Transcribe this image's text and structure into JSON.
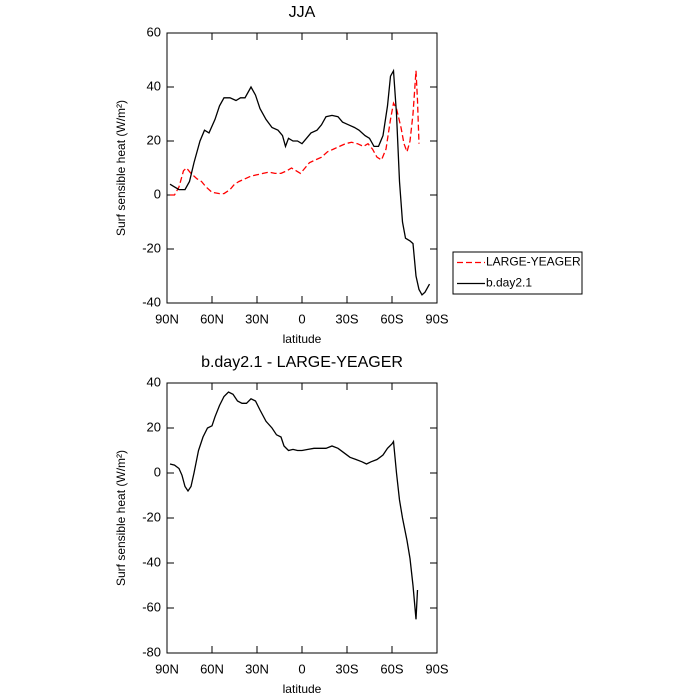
{
  "chart_data": [
    {
      "type": "line",
      "title": "JJA",
      "xlabel": "latitude",
      "ylabel": "Surf sensible heat (W/m²)",
      "xlim": [
        90,
        -90
      ],
      "xticks": [
        {
          "value": 90,
          "label": "90N"
        },
        {
          "value": 60,
          "label": "60N"
        },
        {
          "value": 30,
          "label": "30N"
        },
        0,
        {
          "value": -30,
          "label": "30S"
        },
        {
          "value": -60,
          "label": "60S"
        },
        {
          "value": -90,
          "label": "90S"
        }
      ],
      "ylim": [
        -40,
        60
      ],
      "yticks": [
        -40,
        -20,
        0,
        20,
        40,
        60
      ],
      "legend": "outside-lower-right",
      "series": [
        {
          "name": "LARGE-YEAGER",
          "color": "#ff0000",
          "line_style": "dashed",
          "x": [
            88,
            85,
            82,
            79,
            77,
            74,
            70,
            67,
            64,
            60,
            55,
            52,
            48,
            45,
            42,
            38,
            34,
            30,
            26,
            22,
            18,
            14,
            10,
            7,
            4,
            1,
            -2,
            -5,
            -9,
            -13,
            -17,
            -21,
            -25,
            -29,
            -33,
            -37,
            -41,
            -44,
            -47,
            -50,
            -53,
            -56,
            -59,
            -61,
            -63,
            -66,
            -68,
            -70,
            -72,
            -74,
            -76,
            -77,
            -78
          ],
          "values": [
            0,
            0,
            3,
            9,
            10,
            8,
            6,
            5,
            3,
            1,
            0.5,
            0.5,
            2,
            4,
            5,
            6,
            7,
            7.5,
            8,
            8.5,
            8,
            8,
            9,
            10,
            9,
            8,
            10,
            12,
            13,
            14,
            16,
            17,
            18,
            19,
            19.5,
            19,
            18,
            19,
            17,
            14,
            13,
            17,
            28,
            34,
            32,
            25,
            19,
            16,
            20,
            30,
            46,
            35,
            19
          ]
        },
        {
          "name": "b.day2.1",
          "color": "#000000",
          "line_style": "solid",
          "x": [
            88,
            85,
            82,
            78,
            75,
            72,
            68,
            65,
            62,
            58,
            55,
            52,
            48,
            44,
            41,
            38,
            34,
            31,
            28,
            24,
            20,
            16,
            13,
            11,
            9,
            6,
            3,
            0,
            -3,
            -6,
            -10,
            -13,
            -16,
            -20,
            -24,
            -27,
            -31,
            -35,
            -38,
            -42,
            -45,
            -48,
            -51,
            -54,
            -57,
            -59,
            -61,
            -63,
            -65,
            -67,
            -69,
            -72,
            -74,
            -76,
            -78,
            -80,
            -82,
            -85
          ],
          "values": [
            4,
            3,
            2,
            2,
            5,
            12,
            20,
            24,
            23,
            28,
            33,
            36,
            36,
            35,
            36,
            36,
            40,
            37,
            32,
            28,
            25,
            24,
            22,
            18,
            21,
            20,
            20,
            19,
            21,
            23,
            24,
            26,
            29,
            29.5,
            29,
            27,
            26,
            25,
            24,
            22,
            21,
            18,
            18,
            22,
            33,
            44,
            46,
            30,
            5,
            -10,
            -16,
            -17,
            -18,
            -30,
            -35,
            -37,
            -36,
            -33
          ]
        }
      ]
    },
    {
      "type": "line",
      "title": "b.day2.1 - LARGE-YEAGER",
      "xlabel": "latitude",
      "ylabel": "Surf sensible heat (W/m²)",
      "xlim": [
        90,
        -90
      ],
      "xticks": [
        {
          "value": 90,
          "label": "90N"
        },
        {
          "value": 60,
          "label": "60N"
        },
        {
          "value": 30,
          "label": "30N"
        },
        0,
        {
          "value": -30,
          "label": "30S"
        },
        {
          "value": -60,
          "label": "60S"
        },
        {
          "value": -90,
          "label": "90S"
        }
      ],
      "ylim": [
        -80,
        40
      ],
      "yticks": [
        -80,
        -60,
        -40,
        -20,
        0,
        20,
        40
      ],
      "series": [
        {
          "color": "#000000",
          "line_style": "solid",
          "x": [
            88,
            85,
            82,
            80,
            78,
            76,
            74,
            72,
            69,
            66,
            63,
            60,
            58,
            55,
            52,
            49,
            46,
            43,
            40,
            37,
            34,
            31,
            28,
            24,
            20,
            17,
            14,
            12,
            9,
            6,
            3,
            0,
            -4,
            -8,
            -12,
            -16,
            -20,
            -24,
            -28,
            -32,
            -36,
            -40,
            -43,
            -46,
            -50,
            -54,
            -57,
            -60,
            -61,
            -63,
            -65,
            -67,
            -70,
            -72,
            -74,
            -76,
            -77
          ],
          "values": [
            4,
            3.5,
            2,
            -1,
            -6,
            -8,
            -6,
            0,
            10,
            16,
            20,
            21,
            25,
            30,
            34,
            36,
            35,
            32,
            31,
            31,
            33,
            32,
            28,
            23,
            20,
            17,
            16,
            12,
            10,
            10.5,
            10,
            10,
            10.5,
            11,
            11,
            11,
            12,
            11,
            9,
            7,
            6,
            5,
            4,
            5,
            6,
            8,
            11,
            13,
            14,
            0,
            -12,
            -20,
            -30,
            -38,
            -50,
            -65,
            -52
          ]
        }
      ]
    }
  ]
}
